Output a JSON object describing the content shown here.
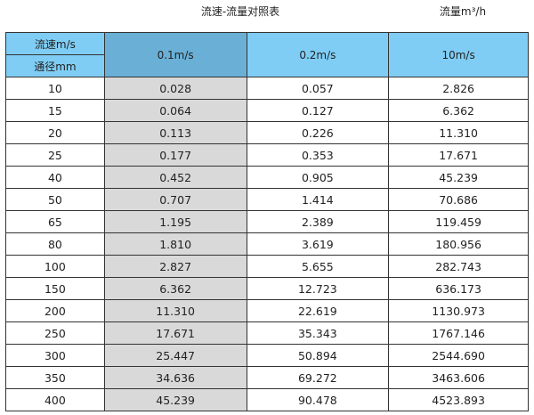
{
  "title": "流速-流量对照表",
  "unit": "流量m³/h",
  "colors": {
    "header": "#7fcdf5",
    "header_selected": "#6ab0d6",
    "highlight_column": "#d9d9d9"
  },
  "header": {
    "velocity_label": "流速m/s",
    "diameter_label": "通径mm",
    "columns": [
      "0.1m/s",
      "0.2m/s",
      "10m/s"
    ]
  },
  "rows": [
    [
      "10",
      "0.028",
      "0.057",
      "2.826"
    ],
    [
      "15",
      "0.064",
      "0.127",
      "6.362"
    ],
    [
      "20",
      "0.113",
      "0.226",
      "11.310"
    ],
    [
      "25",
      "0.177",
      "0.353",
      "17.671"
    ],
    [
      "40",
      "0.452",
      "0.905",
      "45.239"
    ],
    [
      "50",
      "0.707",
      "1.414",
      "70.686"
    ],
    [
      "65",
      "1.195",
      "2.389",
      "119.459"
    ],
    [
      "80",
      "1.810",
      "3.619",
      "180.956"
    ],
    [
      "100",
      "2.827",
      "5.655",
      "282.743"
    ],
    [
      "150",
      "6.362",
      "12.723",
      "636.173"
    ],
    [
      "200",
      "11.310",
      "22.619",
      "1130.973"
    ],
    [
      "250",
      "17.671",
      "35.343",
      "1767.146"
    ],
    [
      "300",
      "25.447",
      "50.894",
      "2544.690"
    ],
    [
      "350",
      "34.636",
      "69.272",
      "3463.606"
    ],
    [
      "400",
      "45.239",
      "90.478",
      "4523.893"
    ]
  ]
}
